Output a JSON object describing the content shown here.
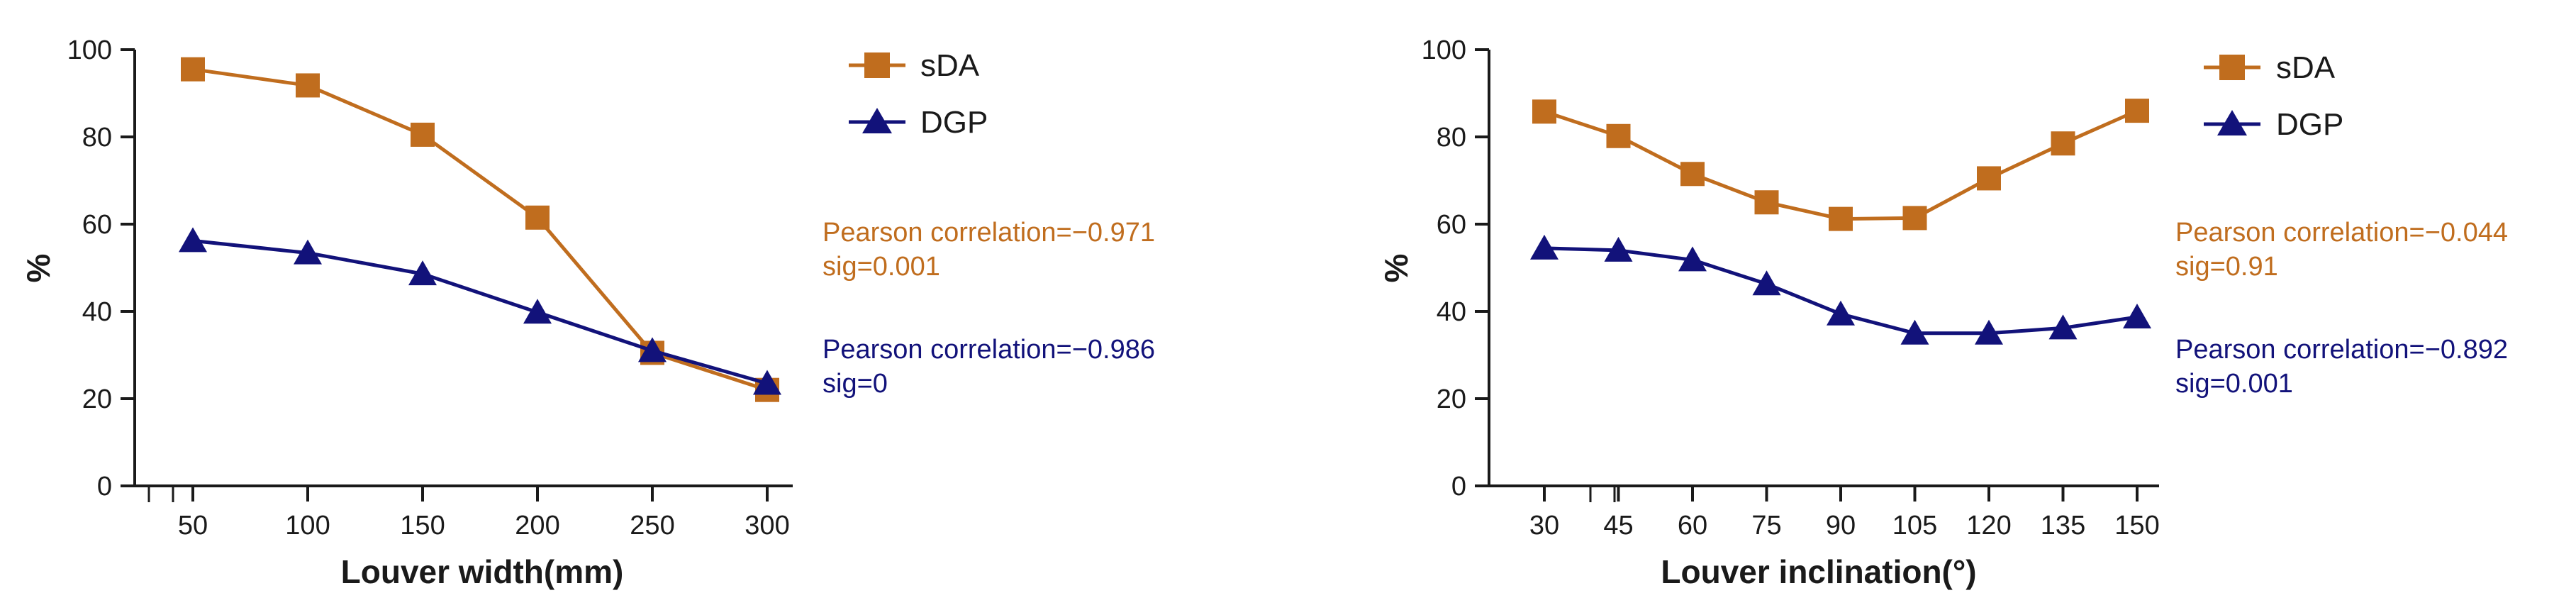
{
  "chart_data": [
    {
      "type": "line",
      "xlabel": "Louver width(mm)",
      "ylabel": "%",
      "ylim": [
        0,
        100
      ],
      "yticks": [
        "0",
        "20",
        "40",
        "60",
        "80",
        "100"
      ],
      "xticks": [
        "50",
        "100",
        "150",
        "200",
        "250",
        "300"
      ],
      "x": [
        50,
        100,
        150,
        200,
        250,
        300
      ],
      "series": [
        {
          "name": "sDA",
          "color": "#c06d1e",
          "marker": "square",
          "values": [
            95.5,
            91.8,
            80.5,
            61.5,
            30.5,
            22.0
          ]
        },
        {
          "name": "DGP",
          "color": "#12127a",
          "marker": "triangle",
          "values": [
            56.2,
            53.4,
            48.6,
            39.8,
            31.0,
            23.5
          ]
        }
      ],
      "annotations": [
        {
          "lines": [
            "Pearson correlation=−0.971",
            "sig=0.001"
          ],
          "color": "#c06d1e"
        },
        {
          "lines": [
            "Pearson correlation=−0.986",
            "sig=0"
          ],
          "color": "#12127a"
        }
      ],
      "grid": false,
      "legend": "top-right"
    },
    {
      "type": "line",
      "xlabel": "Louver inclination(°)",
      "ylabel": "%",
      "ylim": [
        0,
        100
      ],
      "yticks": [
        "0",
        "20",
        "40",
        "60",
        "80",
        "100"
      ],
      "xticks": [
        "30",
        "45",
        "60",
        "75",
        "90",
        "105",
        "120",
        "135",
        "150"
      ],
      "x": [
        30,
        45,
        60,
        75,
        90,
        105,
        120,
        135,
        150
      ],
      "series": [
        {
          "name": "sDA",
          "color": "#c06d1e",
          "marker": "square",
          "values": [
            85.8,
            80.2,
            71.5,
            65.0,
            61.2,
            61.4,
            70.5,
            78.5,
            86.0
          ]
        },
        {
          "name": "DGP",
          "color": "#12127a",
          "marker": "triangle",
          "values": [
            54.5,
            54.0,
            51.8,
            46.3,
            39.4,
            35.0,
            35.0,
            36.2,
            38.7
          ]
        }
      ],
      "annotations": [
        {
          "lines": [
            "Pearson correlation=−0.044",
            "sig=0.91"
          ],
          "color": "#c06d1e"
        },
        {
          "lines": [
            "Pearson correlation=−0.892",
            "sig=0.001"
          ],
          "color": "#12127a"
        }
      ],
      "grid": false,
      "legend": "top-right"
    }
  ]
}
